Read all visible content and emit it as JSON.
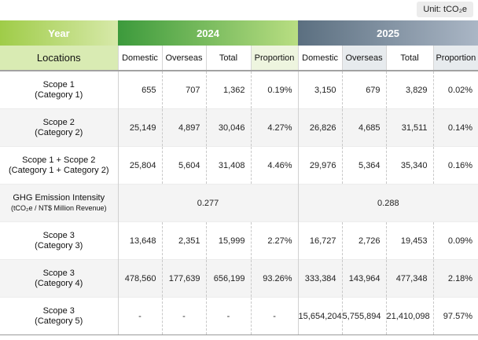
{
  "unit": "Unit: tCO₂e",
  "header": {
    "year_label": "Year",
    "locations_label": "Locations",
    "years": [
      "2024",
      "2025"
    ],
    "cols": [
      "Domestic",
      "Overseas",
      "Total",
      "Proportion"
    ]
  },
  "rows": [
    {
      "label": [
        "Scope 1",
        "(Category 1)"
      ],
      "y2024": [
        "655",
        "707",
        "1,362",
        "0.19%"
      ],
      "y2025": [
        "3,150",
        "679",
        "3,829",
        "0.02%"
      ]
    },
    {
      "label": [
        "Scope 2",
        "(Category 2)"
      ],
      "y2024": [
        "25,149",
        "4,897",
        "30,046",
        "4.27%"
      ],
      "y2025": [
        "26,826",
        "4,685",
        "31,511",
        "0.14%"
      ]
    },
    {
      "label": [
        "Scope 1 + Scope 2",
        "(Category 1 + Category 2)"
      ],
      "y2024": [
        "25,804",
        "5,604",
        "31,408",
        "4.46%"
      ],
      "y2025": [
        "29,976",
        "5,364",
        "35,340",
        "0.16%"
      ]
    },
    {
      "label": [
        "GHG Emission Intensity",
        "(tCO₂e / NT$ Million Revenue)"
      ],
      "intensity_2024": "0.277",
      "intensity_2025": "0.288"
    },
    {
      "label": [
        "Scope 3",
        "(Category 3)"
      ],
      "y2024": [
        "13,648",
        "2,351",
        "15,999",
        "2.27%"
      ],
      "y2025": [
        "16,727",
        "2,726",
        "19,453",
        "0.09%"
      ]
    },
    {
      "label": [
        "Scope 3",
        "(Category 4)"
      ],
      "y2024": [
        "478,560",
        "177,639",
        "656,199",
        "93.26%"
      ],
      "y2025": [
        "333,384",
        "143,964",
        "477,348",
        "2.18%"
      ]
    },
    {
      "label": [
        "Scope 3",
        "(Category 5)"
      ],
      "y2024": [
        "-",
        "-",
        "-",
        "-"
      ],
      "y2025": [
        "15,654,204",
        "5,755,894",
        "21,410,098",
        "97.57%"
      ]
    }
  ]
}
